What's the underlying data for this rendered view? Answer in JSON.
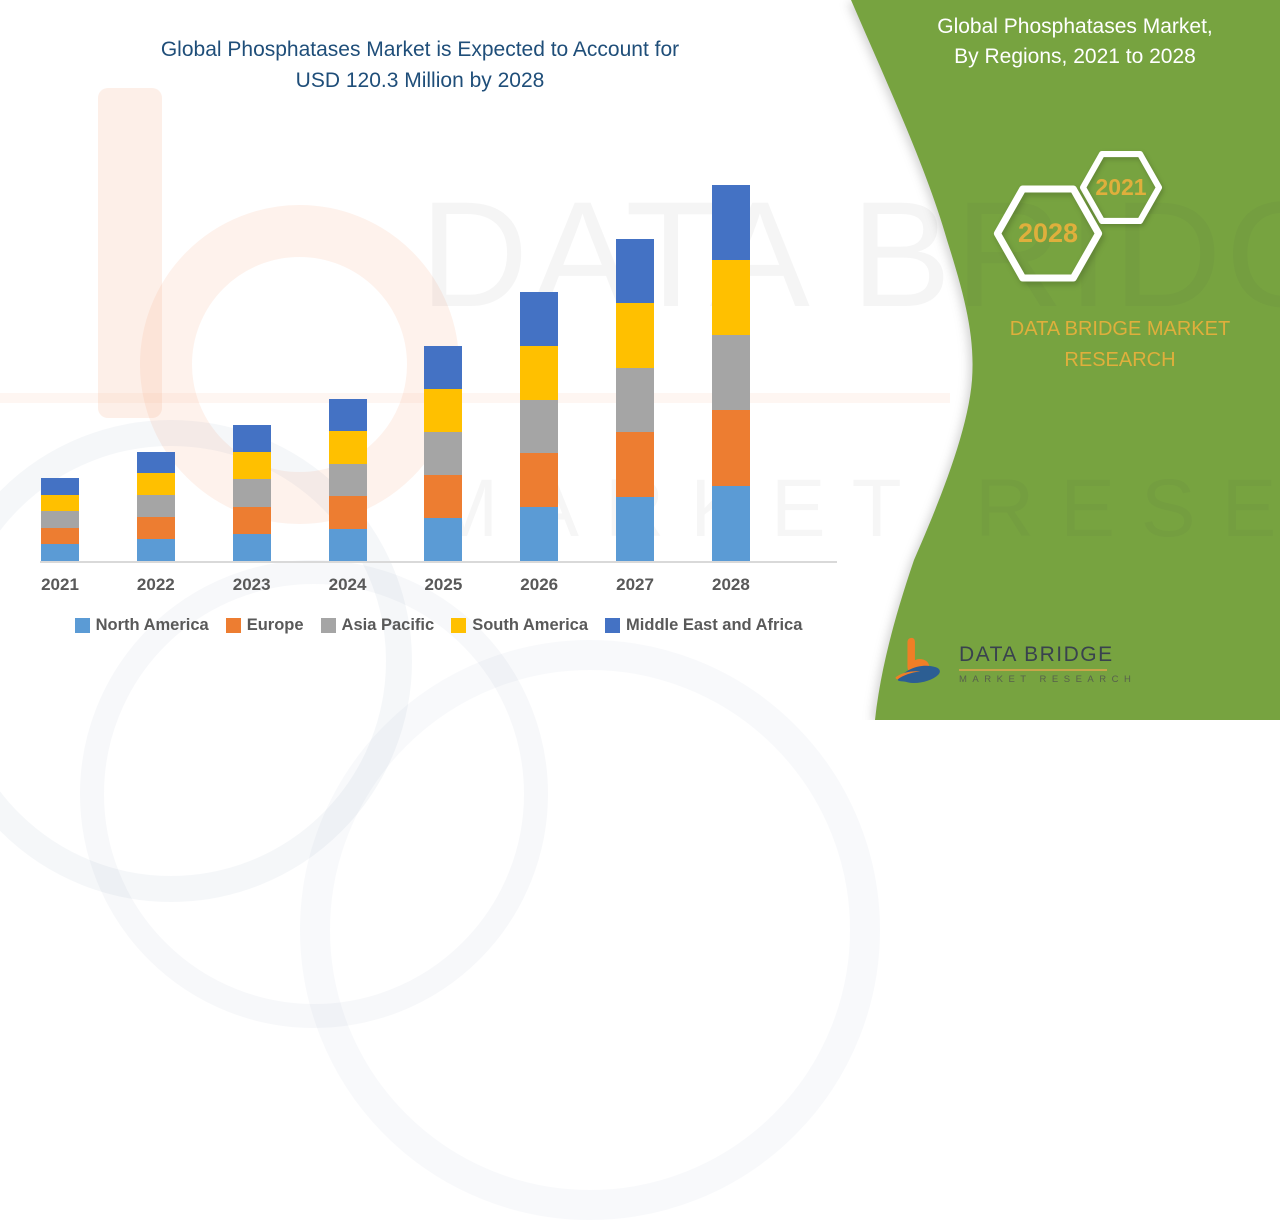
{
  "header": {
    "title_lines": [
      "Global Phosphatases Market is Expected to Account for",
      "USD 120.3 Million by 2028"
    ]
  },
  "chart_data": {
    "type": "bar",
    "stacked": true,
    "title": "Global Phosphatases Market is Expected to Account for USD 120.3 Million by 2028",
    "unit": "USD Million",
    "categories": [
      "2021",
      "2022",
      "2023",
      "2024",
      "2025",
      "2026",
      "2027",
      "2028"
    ],
    "series": [
      {
        "name": "North America",
        "color": "#5B9BD5",
        "values": [
          5.3,
          7.0,
          8.7,
          10.4,
          13.8,
          17.2,
          20.6,
          24.1
        ]
      },
      {
        "name": "Europe",
        "color": "#ED7D31",
        "values": [
          5.3,
          7.0,
          8.7,
          10.4,
          13.8,
          17.2,
          20.6,
          24.1
        ]
      },
      {
        "name": "Asia Pacific",
        "color": "#A5A5A5",
        "values": [
          5.3,
          7.0,
          8.7,
          10.4,
          13.8,
          17.2,
          20.6,
          24.0
        ]
      },
      {
        "name": "South America",
        "color": "#FFC000",
        "values": [
          5.3,
          7.0,
          8.7,
          10.4,
          13.8,
          17.2,
          20.6,
          24.1
        ]
      },
      {
        "name": "Middle East and Africa",
        "color": "#4472C4",
        "values": [
          5.3,
          7.0,
          8.7,
          10.4,
          13.8,
          17.2,
          20.6,
          24.0
        ]
      }
    ],
    "totals": [
      26.5,
      35.0,
      43.5,
      52.0,
      69.0,
      86.0,
      103.0,
      120.3
    ],
    "ylim": [
      0,
      120.3
    ],
    "grid": false,
    "y_axis_shown": false,
    "legend_position": "bottom",
    "axis_line_color": "#D9D9D9"
  },
  "watermark": {
    "line1": "DATA BRIDGE",
    "line2": "MARKET RESEARCH"
  },
  "side_panel": {
    "title_lines": [
      "Global Phosphatases Market,",
      "By Regions, 2021 to 2028"
    ],
    "hexagons": [
      "2021",
      "2028"
    ],
    "brand_lines": [
      "DATA BRIDGE MARKET",
      "RESEARCH"
    ],
    "panel_green": "#77A340",
    "gold": "#DFAF3C"
  },
  "footer_logo": {
    "name": "DATA BRIDGE",
    "tagline": "MARKET RESEARCH"
  },
  "colors": {
    "title_blue": "#1F4E79",
    "axis_text": "#595959",
    "axis_line": "#D9D9D9"
  }
}
